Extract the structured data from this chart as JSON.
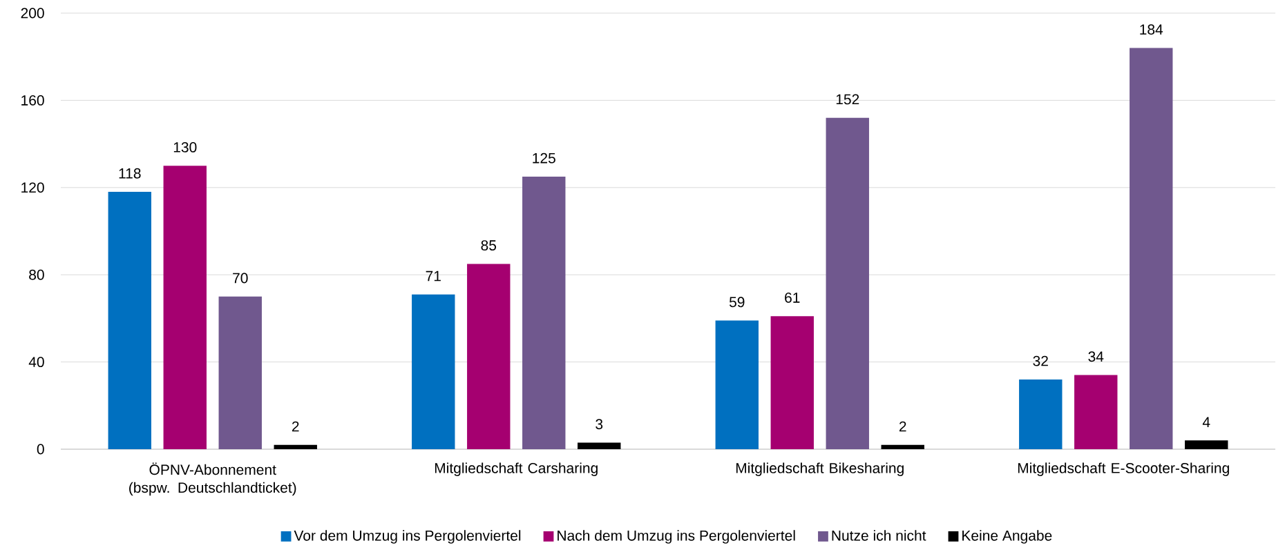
{
  "chart_data": {
    "type": "bar",
    "categories": [
      "ÖPNV-Abonnement (bspw. Deutschlandticket)",
      "Mitgliedschaft Carsharing",
      "Mitgliedschaft Bikesharing",
      "Mitgliedschaft E-Scooter-Sharing"
    ],
    "series": [
      {
        "name": "Vor dem Umzug ins Pergolenviertel",
        "color": "#0070c0",
        "values": [
          118,
          71,
          59,
          32
        ]
      },
      {
        "name": "Nach dem Umzug ins Pergolenviertel",
        "color": "#a50070",
        "values": [
          130,
          85,
          61,
          34
        ]
      },
      {
        "name": "Nutze ich nicht",
        "color": "#70588e",
        "values": [
          70,
          125,
          152,
          184
        ]
      },
      {
        "name": "Keine Angabe",
        "color": "#000000",
        "values": [
          2,
          3,
          2,
          4
        ]
      }
    ],
    "ylim": [
      0,
      200
    ],
    "yticks": [
      0,
      40,
      80,
      120,
      160,
      200
    ],
    "grid": "y",
    "legend": "bottom",
    "data_labels": true
  }
}
